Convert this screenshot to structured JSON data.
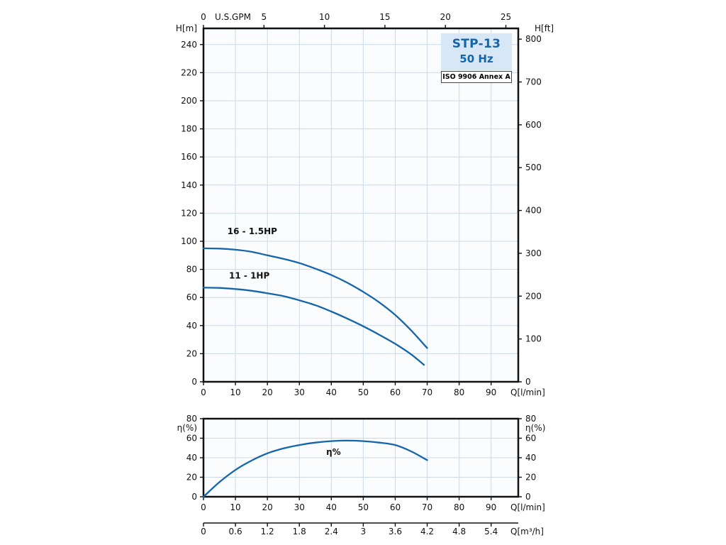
{
  "title_box": {
    "model": "STP-13",
    "frequency": "50 Hz",
    "standard": "ISO 9906 Annex A"
  },
  "colors": {
    "curve": "#1565ab",
    "curve_label": "#1565ab",
    "grid": "#ccdae7",
    "axis": "#111111",
    "tick_label": "#111111",
    "plot_bg": "#fafcfe",
    "page_bg": "#ffffff",
    "title_bg": "#d7e7f6",
    "title_text": "#1565ab",
    "standard_bg": "#ffffff",
    "standard_text": "#000000"
  },
  "chart_data": [
    {
      "type": "line",
      "name": "head-vs-flow",
      "xlabel": "Q[l/min]",
      "xlabel_top": "U.S.GPM",
      "ylabel_left": "H[m]",
      "ylabel_right": "H[ft]",
      "xlim": [
        0,
        98.5
      ],
      "ylim_left": [
        0,
        251.5
      ],
      "x_ticks": [
        0,
        10,
        20,
        30,
        40,
        50,
        60,
        70,
        80,
        90
      ],
      "x_ticks_top_gpm": [
        0,
        5,
        10,
        15,
        20,
        25
      ],
      "gpm_to_lmin": 3.785,
      "y_ticks_left": [
        0,
        20,
        40,
        60,
        80,
        100,
        120,
        140,
        160,
        180,
        200,
        220,
        240
      ],
      "y_ticks_right_ft": [
        0,
        100,
        200,
        300,
        400,
        500,
        600,
        700,
        800
      ],
      "ft_to_m": 0.3048,
      "grid": true,
      "legend_position": "none",
      "series": [
        {
          "name": "16 - 1.5HP",
          "x": [
            0,
            5,
            10,
            15,
            20,
            25,
            30,
            35,
            40,
            45,
            50,
            55,
            60,
            65,
            70
          ],
          "y": [
            95,
            94.8,
            94,
            92.5,
            90,
            87.5,
            84.5,
            80.5,
            76,
            70.5,
            64,
            56.5,
            47.5,
            36.5,
            24
          ],
          "label_at": [
            7.5,
            105
          ]
        },
        {
          "name": "11 - 1HP",
          "x": [
            0,
            5,
            10,
            15,
            20,
            25,
            30,
            35,
            40,
            45,
            50,
            55,
            60,
            65,
            69
          ],
          "y": [
            67,
            66.8,
            66,
            64.8,
            63,
            61,
            58,
            54.5,
            50,
            45,
            39.5,
            33.5,
            27,
            19.5,
            12
          ],
          "label_at": [
            8,
            73.5
          ]
        }
      ]
    },
    {
      "type": "line",
      "name": "efficiency-vs-flow",
      "xlabel": "Q[l/min]",
      "xlabel_secondary": "Q[m³/h]",
      "ylabel_left": "η(%)",
      "ylabel_right": "η(%)",
      "xlim": [
        0,
        98.5
      ],
      "ylim": [
        0,
        80
      ],
      "x_ticks": [
        0,
        10,
        20,
        30,
        40,
        50,
        60,
        70,
        80,
        90
      ],
      "y_ticks": [
        0,
        20,
        40,
        60,
        80
      ],
      "secondary_x_ticks_m3h": [
        0,
        0.6,
        1.2,
        1.8,
        2.4,
        3,
        3.6,
        4.2,
        4.8,
        5.4
      ],
      "m3h_to_lmin": 16.6667,
      "grid": true,
      "series": [
        {
          "name": "η%",
          "x": [
            0,
            5,
            10,
            15,
            20,
            25,
            30,
            35,
            40,
            45,
            50,
            55,
            60,
            65,
            70
          ],
          "y": [
            0,
            15,
            27.5,
            37,
            44.5,
            49.5,
            53,
            55.5,
            57,
            57.5,
            57,
            55.5,
            53,
            46.5,
            37.5
          ],
          "label_at": [
            38.4,
            43
          ]
        }
      ]
    }
  ]
}
